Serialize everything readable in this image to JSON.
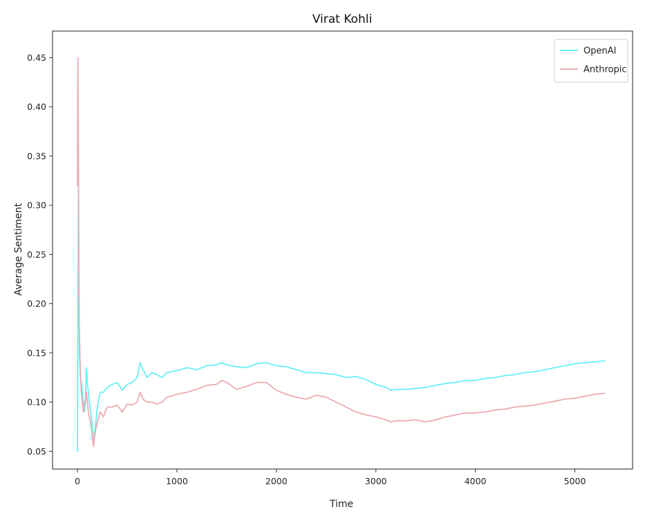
{
  "chart_data": {
    "type": "line",
    "title": "Virat Kohli",
    "xlabel": "Time",
    "ylabel": "Average Sentiment",
    "xlim": [
      -250,
      5580
    ],
    "ylim": [
      0.032,
      0.477
    ],
    "xticks": [
      0,
      1000,
      2000,
      3000,
      4000,
      5000
    ],
    "xtick_labels": [
      "0",
      "1000",
      "2000",
      "3000",
      "4000",
      "5000"
    ],
    "yticks": [
      0.05,
      0.1,
      0.15,
      0.2,
      0.25,
      0.3,
      0.35,
      0.4,
      0.45
    ],
    "ytick_labels": [
      "0.05",
      "0.10",
      "0.15",
      "0.20",
      "0.25",
      "0.30",
      "0.35",
      "0.40",
      "0.45"
    ],
    "grid": false,
    "legend_position": "top-right",
    "series": [
      {
        "name": "OpenAI",
        "color": "#66f0f5",
        "x": [
          0,
          5,
          10,
          15,
          20,
          30,
          40,
          50,
          60,
          70,
          80,
          90,
          100,
          110,
          120,
          140,
          160,
          180,
          200,
          230,
          260,
          300,
          350,
          400,
          450,
          500,
          550,
          600,
          630,
          660,
          700,
          750,
          800,
          850,
          900,
          1000,
          1100,
          1200,
          1300,
          1400,
          1450,
          1500,
          1600,
          1700,
          1800,
          1900,
          2000,
          2100,
          2200,
          2300,
          2400,
          2500,
          2600,
          2700,
          2800,
          2900,
          3000,
          3100,
          3150,
          3200,
          3300,
          3400,
          3500,
          3600,
          3700,
          3800,
          3900,
          4000,
          4100,
          4200,
          4300,
          4400,
          4500,
          4600,
          4700,
          4800,
          4900,
          5000,
          5100,
          5200,
          5300
        ],
        "values": [
          0.05,
          0.2,
          0.33,
          0.22,
          0.15,
          0.125,
          0.12,
          0.11,
          0.1,
          0.09,
          0.1,
          0.135,
          0.12,
          0.11,
          0.1,
          0.085,
          0.06,
          0.075,
          0.095,
          0.11,
          0.11,
          0.115,
          0.118,
          0.12,
          0.112,
          0.118,
          0.12,
          0.125,
          0.14,
          0.133,
          0.125,
          0.13,
          0.128,
          0.125,
          0.13,
          0.132,
          0.135,
          0.133,
          0.137,
          0.138,
          0.14,
          0.138,
          0.136,
          0.135,
          0.139,
          0.14,
          0.137,
          0.136,
          0.133,
          0.13,
          0.13,
          0.129,
          0.128,
          0.125,
          0.126,
          0.123,
          0.118,
          0.115,
          0.112,
          0.113,
          0.113,
          0.114,
          0.115,
          0.117,
          0.119,
          0.12,
          0.122,
          0.122,
          0.124,
          0.125,
          0.127,
          0.128,
          0.13,
          0.131,
          0.133,
          0.135,
          0.137,
          0.139,
          0.14,
          0.141,
          0.142
        ]
      },
      {
        "name": "Anthropic",
        "color": "#edaab0",
        "x": [
          0,
          5,
          10,
          15,
          20,
          30,
          40,
          50,
          60,
          70,
          80,
          90,
          100,
          110,
          120,
          140,
          160,
          180,
          200,
          230,
          260,
          300,
          350,
          400,
          450,
          500,
          550,
          600,
          630,
          660,
          700,
          750,
          800,
          850,
          900,
          1000,
          1100,
          1200,
          1300,
          1400,
          1450,
          1500,
          1600,
          1700,
          1800,
          1900,
          2000,
          2100,
          2200,
          2300,
          2400,
          2500,
          2600,
          2700,
          2800,
          2900,
          3000,
          3100,
          3150,
          3200,
          3300,
          3400,
          3500,
          3600,
          3700,
          3800,
          3900,
          4000,
          4100,
          4200,
          4300,
          4400,
          4500,
          4600,
          4700,
          4800,
          4900,
          5000,
          5100,
          5200,
          5300
        ],
        "values": [
          0.32,
          0.45,
          0.35,
          0.2,
          0.17,
          0.13,
          0.11,
          0.1,
          0.09,
          0.1,
          0.1,
          0.11,
          0.1,
          0.09,
          0.085,
          0.075,
          0.055,
          0.07,
          0.08,
          0.09,
          0.085,
          0.095,
          0.095,
          0.097,
          0.09,
          0.098,
          0.097,
          0.1,
          0.11,
          0.103,
          0.1,
          0.1,
          0.098,
          0.1,
          0.105,
          0.108,
          0.11,
          0.113,
          0.117,
          0.118,
          0.122,
          0.12,
          0.113,
          0.116,
          0.12,
          0.12,
          0.112,
          0.108,
          0.105,
          0.103,
          0.107,
          0.105,
          0.1,
          0.095,
          0.09,
          0.087,
          0.085,
          0.082,
          0.08,
          0.081,
          0.081,
          0.082,
          0.08,
          0.082,
          0.085,
          0.087,
          0.089,
          0.089,
          0.09,
          0.092,
          0.093,
          0.095,
          0.096,
          0.097,
          0.099,
          0.101,
          0.103,
          0.104,
          0.106,
          0.108,
          0.109
        ]
      }
    ]
  }
}
